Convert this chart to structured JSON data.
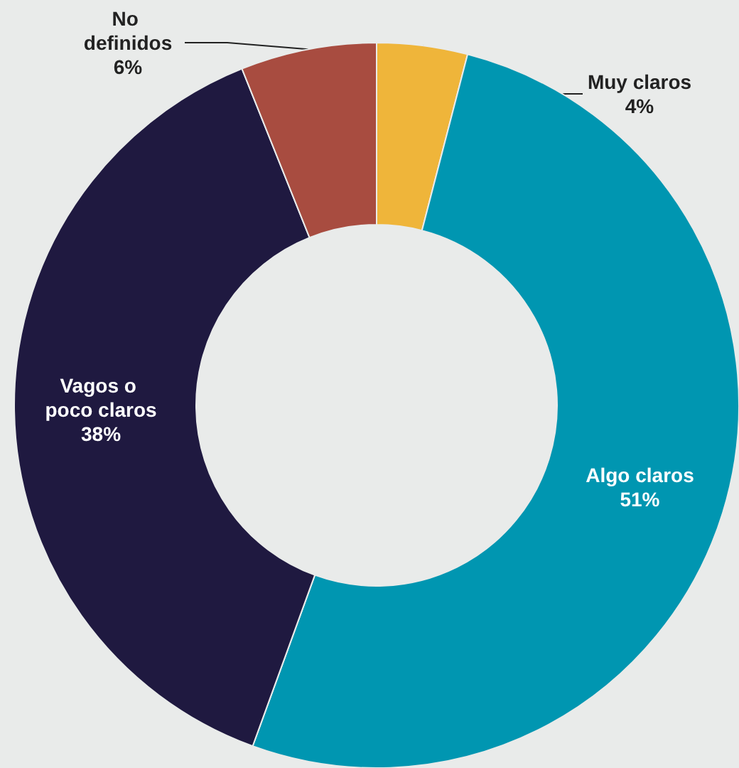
{
  "chart_data": {
    "type": "donut",
    "categories": [
      "Muy claros",
      "Algo claros",
      "Vagos o poco claros",
      "No definidos"
    ],
    "values": [
      4,
      51,
      38,
      6
    ],
    "colors": [
      "#efb53a",
      "#0096b1",
      "#1f1940",
      "#a84c40"
    ],
    "value_labels": [
      "4%",
      "51%",
      "38%",
      "6%"
    ],
    "legend": false
  }
}
